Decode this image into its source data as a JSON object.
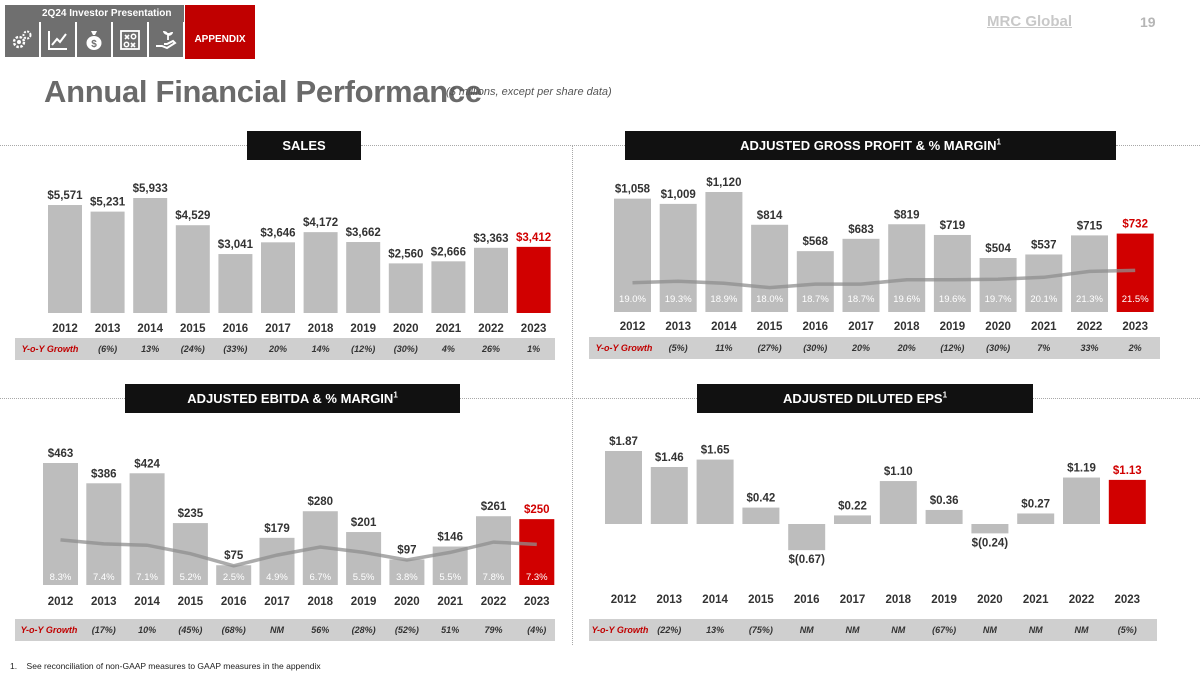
{
  "header": {
    "presentation_label": "2Q24 Investor Presentation",
    "appendix_label": "APPENDIX",
    "brand": "MRC Global",
    "page_number": "19",
    "nav_icons": [
      "gears-icon",
      "chart-trend-icon",
      "money-bag-icon",
      "strategy-board-icon",
      "hand-plant-icon"
    ]
  },
  "page": {
    "title": "Annual Financial Performance",
    "subtitle": "($ millions, except per share data)"
  },
  "colors": {
    "bar": "#bdbdbd",
    "highlight": "#d10000",
    "header_bg": "#111111",
    "growth_bg": "#cfcfcf",
    "growth_label": "#c00000"
  },
  "growth_label": "Y-o-Y Growth",
  "years": [
    "2012",
    "2013",
    "2014",
    "2015",
    "2016",
    "2017",
    "2018",
    "2019",
    "2020",
    "2021",
    "2022",
    "2023"
  ],
  "chart_data": [
    {
      "id": "sales",
      "type": "bar",
      "title": "SALES",
      "title_sup": "",
      "categories": [
        "2012",
        "2013",
        "2014",
        "2015",
        "2016",
        "2017",
        "2018",
        "2019",
        "2020",
        "2021",
        "2022",
        "2023"
      ],
      "values": [
        5571,
        5231,
        5933,
        4529,
        3041,
        3646,
        4172,
        3662,
        2560,
        2666,
        3363,
        3412
      ],
      "value_labels": [
        "$5,571",
        "$5,231",
        "$5,933",
        "$4,529",
        "$3,041",
        "$3,646",
        "$4,172",
        "$3,662",
        "$2,560",
        "$2,666",
        "$3,363",
        "$3,412"
      ],
      "highlight_index": 11,
      "growth": [
        "(6%)",
        "13%",
        "(24%)",
        "(33%)",
        "20%",
        "14%",
        "(12%)",
        "(30%)",
        "4%",
        "26%",
        "1%"
      ]
    },
    {
      "id": "gross_profit",
      "type": "bar",
      "title": "ADJUSTED GROSS PROFIT & % MARGIN",
      "title_sup": "1",
      "categories": [
        "2012",
        "2013",
        "2014",
        "2015",
        "2016",
        "2017",
        "2018",
        "2019",
        "2020",
        "2021",
        "2022",
        "2023"
      ],
      "values": [
        1058,
        1009,
        1120,
        814,
        568,
        683,
        819,
        719,
        504,
        537,
        715,
        732
      ],
      "value_labels": [
        "$1,058",
        "$1,009",
        "$1,120",
        "$814",
        "$568",
        "$683",
        "$819",
        "$719",
        "$504",
        "$537",
        "$715",
        "$732"
      ],
      "margins": [
        19.0,
        19.3,
        18.9,
        18.0,
        18.7,
        18.7,
        19.6,
        19.6,
        19.7,
        20.1,
        21.3,
        21.5
      ],
      "margin_labels": [
        "19.0%",
        "19.3%",
        "18.9%",
        "18.0%",
        "18.7%",
        "18.7%",
        "19.6%",
        "19.6%",
        "19.7%",
        "20.1%",
        "21.3%",
        "21.5%"
      ],
      "highlight_index": 11,
      "growth": [
        "(5%)",
        "11%",
        "(27%)",
        "(30%)",
        "20%",
        "20%",
        "(12%)",
        "(30%)",
        "7%",
        "33%",
        "2%"
      ]
    },
    {
      "id": "ebitda",
      "type": "bar",
      "title": "ADJUSTED EBITDA & % MARGIN",
      "title_sup": "1",
      "categories": [
        "2012",
        "2013",
        "2014",
        "2015",
        "2016",
        "2017",
        "2018",
        "2019",
        "2020",
        "2021",
        "2022",
        "2023"
      ],
      "values": [
        463,
        386,
        424,
        235,
        75,
        179,
        280,
        201,
        97,
        146,
        261,
        250
      ],
      "value_labels": [
        "$463",
        "$386",
        "$424",
        "$235",
        "$75",
        "$179",
        "$280",
        "$201",
        "$97",
        "$146",
        "$261",
        "$250"
      ],
      "margins": [
        8.3,
        7.4,
        7.1,
        5.2,
        2.5,
        4.9,
        6.7,
        5.5,
        3.8,
        5.5,
        7.8,
        7.3
      ],
      "margin_labels": [
        "8.3%",
        "7.4%",
        "7.1%",
        "5.2%",
        "2.5%",
        "4.9%",
        "6.7%",
        "5.5%",
        "3.8%",
        "5.5%",
        "7.8%",
        "7.3%"
      ],
      "highlight_index": 11,
      "growth": [
        "(17%)",
        "10%",
        "(45%)",
        "(68%)",
        "NM",
        "56%",
        "(28%)",
        "(52%)",
        "51%",
        "79%",
        "(4%)"
      ]
    },
    {
      "id": "eps",
      "type": "bar",
      "title": "ADJUSTED DILUTED EPS",
      "title_sup": "1",
      "categories": [
        "2012",
        "2013",
        "2014",
        "2015",
        "2016",
        "2017",
        "2018",
        "2019",
        "2020",
        "2021",
        "2022",
        "2023"
      ],
      "values": [
        1.87,
        1.46,
        1.65,
        0.42,
        -0.67,
        0.22,
        1.1,
        0.36,
        -0.24,
        0.27,
        1.19,
        1.13
      ],
      "value_labels": [
        "$1.87",
        "$1.46",
        "$1.65",
        "$0.42",
        "$(0.67)",
        "$0.22",
        "$1.10",
        "$0.36",
        "$(0.24)",
        "$0.27",
        "$1.19",
        "$1.13"
      ],
      "highlight_index": 11,
      "growth": [
        "(22%)",
        "13%",
        "(75%)",
        "NM",
        "NM",
        "NM",
        "(67%)",
        "NM",
        "NM",
        "NM",
        "(5%)"
      ]
    }
  ],
  "footnote": {
    "number": "1.",
    "text": "See reconciliation of non-GAAP measures to GAAP measures in the appendix"
  }
}
